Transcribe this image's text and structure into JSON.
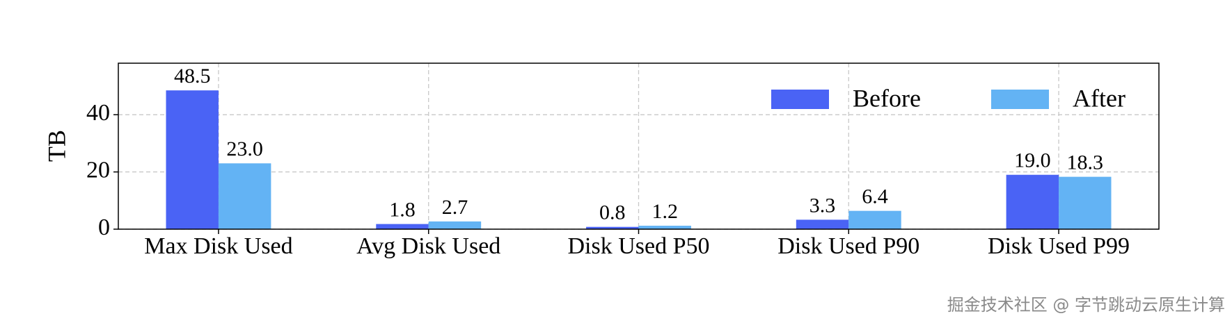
{
  "chart_data": {
    "type": "bar",
    "categories": [
      "Max Disk Used",
      "Avg Disk Used",
      "Disk Used P50",
      "Disk Used P90",
      "Disk Used P99"
    ],
    "y_label": "TB",
    "series": [
      {
        "name": "Before",
        "color": "#4a63f5",
        "values": [
          48.5,
          1.8,
          0.8,
          3.3,
          19.0
        ],
        "value_labels": [
          "48.5",
          "1.8",
          "0.8",
          "3.3",
          "19.0"
        ]
      },
      {
        "name": "After",
        "color": "#63b3f4",
        "values": [
          23.0,
          2.7,
          1.2,
          6.4,
          18.3
        ],
        "value_labels": [
          "23.0",
          "2.7",
          "1.2",
          "6.4",
          "18.3"
        ]
      }
    ],
    "ylim": [
      0,
      58
    ],
    "yticks": [
      0,
      20,
      40
    ],
    "grid": true,
    "legend": "upper right"
  },
  "watermark": "掘金技术社区 @ 字节跳动云原生计算"
}
